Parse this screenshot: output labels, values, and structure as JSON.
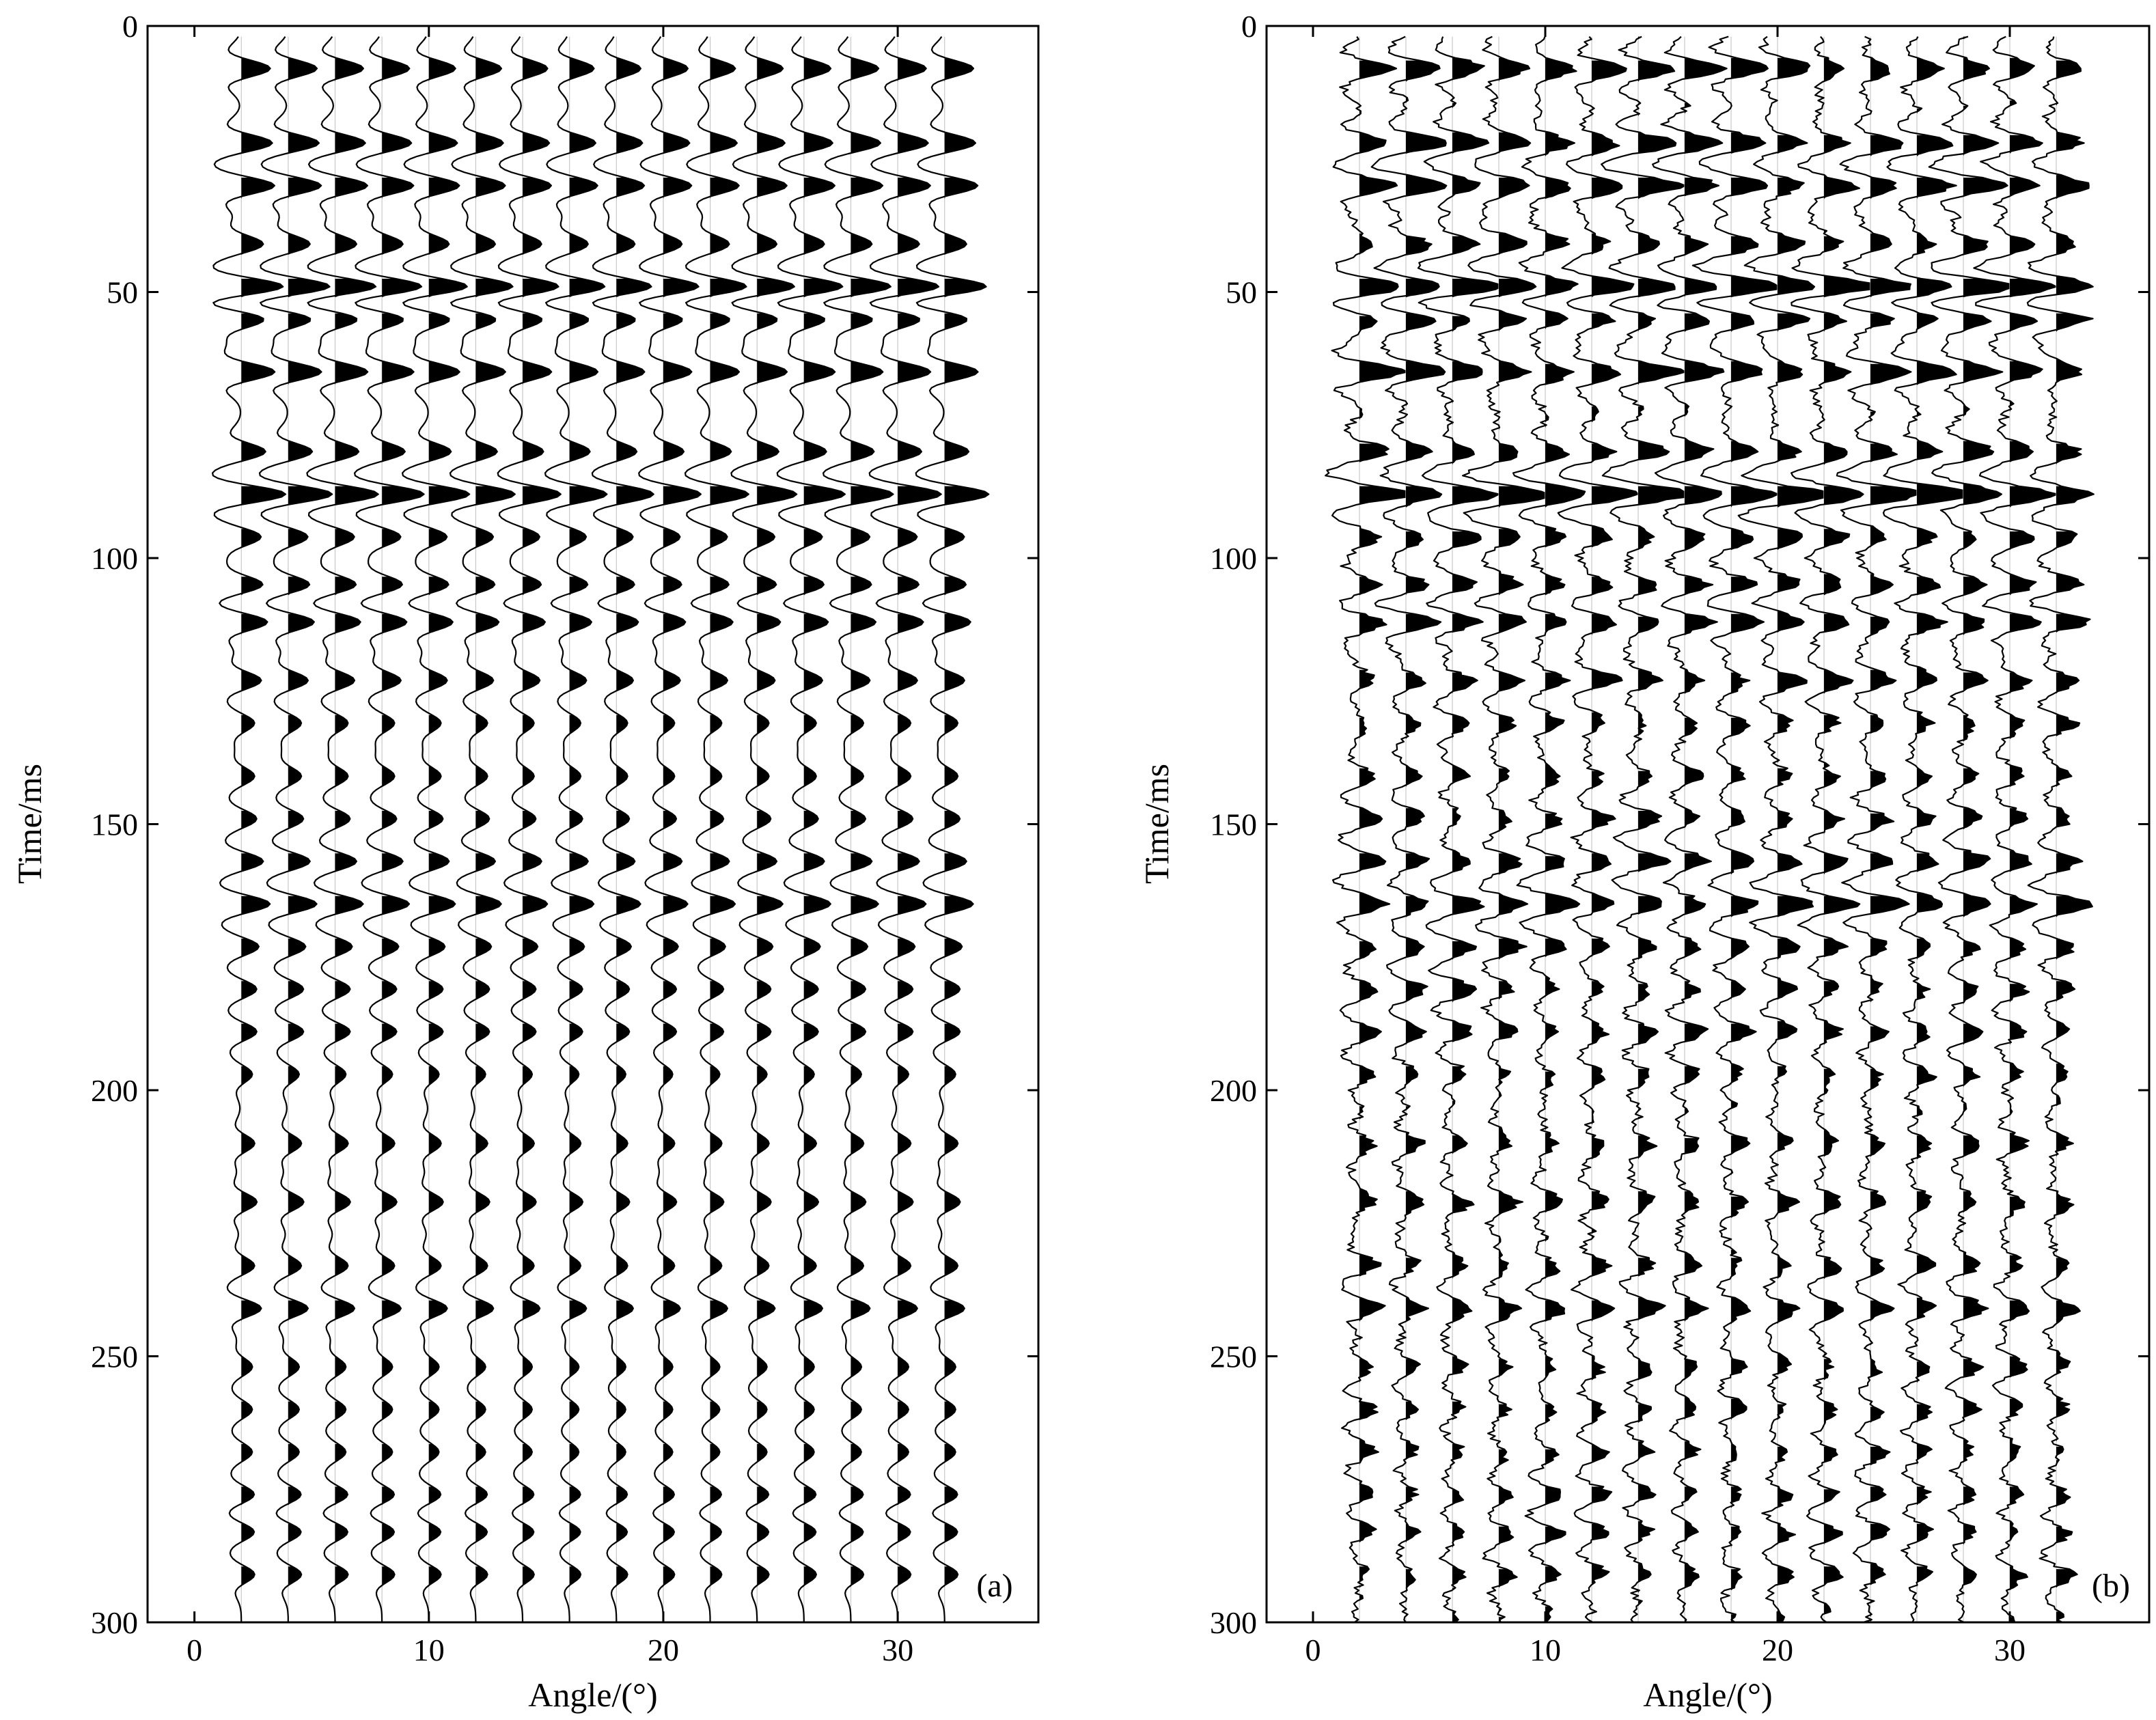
{
  "chart_data": [
    {
      "type": "wiggle",
      "panel_label": "(a)",
      "xlabel": "Angle/(°)",
      "ylabel": "Time/ms",
      "xlim": [
        -2,
        36
      ],
      "ylim": [
        300,
        0
      ],
      "xticks": [
        0,
        10,
        20,
        30
      ],
      "yticks": [
        0,
        50,
        100,
        150,
        200,
        250,
        300
      ],
      "trace_angles": [
        2,
        4,
        6,
        8,
        10,
        12,
        14,
        16,
        18,
        20,
        22,
        24,
        26,
        28,
        30,
        32
      ],
      "time_range": [
        2,
        300
      ],
      "fill": "positive",
      "noise": "none",
      "events": [
        {
          "time": 8,
          "amplitude": 0.65
        },
        {
          "time": 22,
          "amplitude": 0.7
        },
        {
          "time": 30,
          "amplitude": 0.75
        },
        {
          "time": 41,
          "amplitude": 0.5
        },
        {
          "time": 49,
          "amplitude": 1.0
        },
        {
          "time": 55,
          "amplitude": 0.6
        },
        {
          "time": 65,
          "amplitude": 0.75
        },
        {
          "time": 80,
          "amplitude": 0.55
        },
        {
          "time": 88,
          "amplitude": 1.0
        },
        {
          "time": 96,
          "amplitude": 0.45
        },
        {
          "time": 105,
          "amplitude": 0.5
        },
        {
          "time": 112,
          "amplitude": 0.6
        },
        {
          "time": 123,
          "amplitude": 0.45
        },
        {
          "time": 131,
          "amplitude": 0.3
        },
        {
          "time": 141,
          "amplitude": 0.3
        },
        {
          "time": 149,
          "amplitude": 0.35
        },
        {
          "time": 157,
          "amplitude": 0.5
        },
        {
          "time": 165,
          "amplitude": 0.65
        },
        {
          "time": 173,
          "amplitude": 0.4
        },
        {
          "time": 181,
          "amplitude": 0.35
        },
        {
          "time": 189,
          "amplitude": 0.35
        },
        {
          "time": 197,
          "amplitude": 0.25
        },
        {
          "time": 210,
          "amplitude": 0.3
        },
        {
          "time": 221,
          "amplitude": 0.35
        },
        {
          "time": 233,
          "amplitude": 0.3
        },
        {
          "time": 241,
          "amplitude": 0.45
        },
        {
          "time": 252,
          "amplitude": 0.25
        },
        {
          "time": 260,
          "amplitude": 0.25
        },
        {
          "time": 268,
          "amplitude": 0.25
        },
        {
          "time": 276,
          "amplitude": 0.3
        },
        {
          "time": 283,
          "amplitude": 0.3
        },
        {
          "time": 291,
          "amplitude": 0.3
        }
      ]
    },
    {
      "type": "wiggle",
      "panel_label": "(b)",
      "xlabel": "Angle/(°)",
      "ylabel": "Time/ms",
      "xlim": [
        -2,
        36
      ],
      "ylim": [
        300,
        0
      ],
      "xticks": [
        0,
        10,
        20,
        30
      ],
      "yticks": [
        0,
        50,
        100,
        150,
        200,
        250,
        300
      ],
      "trace_angles": [
        2,
        4,
        6,
        8,
        10,
        12,
        14,
        16,
        18,
        20,
        22,
        24,
        26,
        28,
        30,
        32
      ],
      "time_range": [
        2,
        300
      ],
      "fill": "positive",
      "noise": "moderate",
      "events": [
        {
          "time": 8,
          "amplitude": 0.65
        },
        {
          "time": 22,
          "amplitude": 0.7
        },
        {
          "time": 30,
          "amplitude": 0.75
        },
        {
          "time": 41,
          "amplitude": 0.5
        },
        {
          "time": 49,
          "amplitude": 1.0
        },
        {
          "time": 55,
          "amplitude": 0.6
        },
        {
          "time": 65,
          "amplitude": 0.75
        },
        {
          "time": 80,
          "amplitude": 0.55
        },
        {
          "time": 88,
          "amplitude": 1.0
        },
        {
          "time": 96,
          "amplitude": 0.45
        },
        {
          "time": 105,
          "amplitude": 0.5
        },
        {
          "time": 112,
          "amplitude": 0.6
        },
        {
          "time": 123,
          "amplitude": 0.45
        },
        {
          "time": 131,
          "amplitude": 0.3
        },
        {
          "time": 141,
          "amplitude": 0.3
        },
        {
          "time": 149,
          "amplitude": 0.35
        },
        {
          "time": 157,
          "amplitude": 0.5
        },
        {
          "time": 165,
          "amplitude": 0.65
        },
        {
          "time": 173,
          "amplitude": 0.4
        },
        {
          "time": 181,
          "amplitude": 0.35
        },
        {
          "time": 189,
          "amplitude": 0.35
        },
        {
          "time": 197,
          "amplitude": 0.25
        },
        {
          "time": 210,
          "amplitude": 0.3
        },
        {
          "time": 221,
          "amplitude": 0.35
        },
        {
          "time": 233,
          "amplitude": 0.3
        },
        {
          "time": 241,
          "amplitude": 0.45
        },
        {
          "time": 252,
          "amplitude": 0.25
        },
        {
          "time": 260,
          "amplitude": 0.25
        },
        {
          "time": 268,
          "amplitude": 0.25
        },
        {
          "time": 276,
          "amplitude": 0.3
        },
        {
          "time": 283,
          "amplitude": 0.3
        },
        {
          "time": 291,
          "amplitude": 0.3
        }
      ]
    }
  ]
}
